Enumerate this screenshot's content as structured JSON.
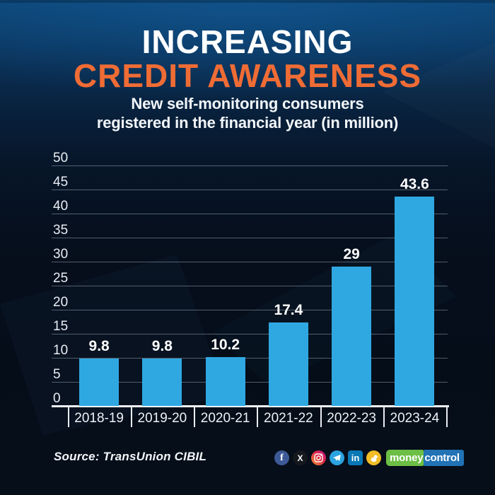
{
  "header": {
    "title_line1": "INCREASING",
    "title_line2": "CREDIT AWARENESS",
    "subtitle_line1": "New self-monitoring consumers",
    "subtitle_line2": "registered in the financial year (in million)"
  },
  "chart_data": {
    "type": "bar",
    "title": "INCREASING CREDIT AWARENESS",
    "subtitle": "New self-monitoring consumers registered in the financial year (in million)",
    "categories": [
      "2018-19",
      "2019-20",
      "2020-21",
      "2021-22",
      "2022-23",
      "2023-24"
    ],
    "values": [
      9.8,
      9.8,
      10.2,
      17.4,
      29,
      43.6
    ],
    "value_labels": [
      "9.8",
      "9.8",
      "10.2",
      "17.4",
      "29",
      "43.6"
    ],
    "xlabel": "",
    "ylabel": "",
    "ylim": [
      0,
      50
    ],
    "ytick_step": 5,
    "yticks": [
      0,
      5,
      10,
      15,
      20,
      25,
      30,
      35,
      40,
      45,
      50
    ],
    "grid": true,
    "legend": "none",
    "bar_color": "#2fa8e1"
  },
  "footer": {
    "source": "Source: TransUnion CIBIL",
    "social_glyphs": {
      "facebook": "f",
      "x": "X",
      "linkedin": "in"
    },
    "brand": {
      "part1": "money",
      "part2": "control"
    }
  },
  "colors": {
    "accent_orange": "#ef6c35",
    "bar_blue": "#2fa8e1",
    "background_top": "#0c4373",
    "background_bottom": "#060e1a",
    "brand_green": "#6cbe45",
    "brand_blue": "#2173b5"
  }
}
